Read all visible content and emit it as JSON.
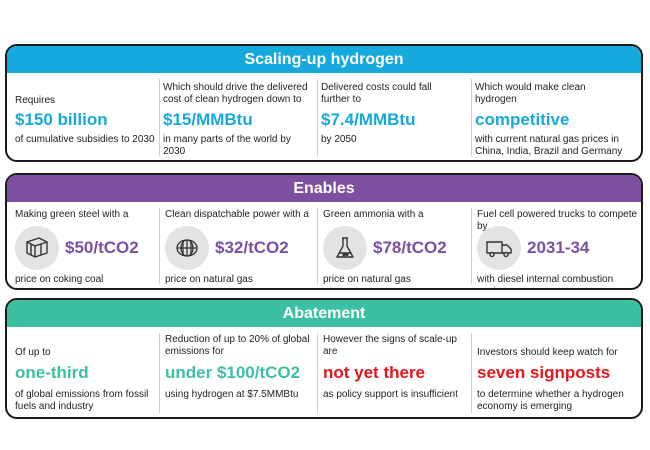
{
  "panel1": {
    "title": "Scaling-up hydrogen",
    "cols": [
      {
        "top": "Requires",
        "big": "$150 billion",
        "bottom": "of cumulative subsidies to 2030"
      },
      {
        "top": "Which should drive the delivered cost of clean hydrogen down to",
        "big": "$15/MMBtu",
        "bottom": "in many parts of the world by 2030"
      },
      {
        "top": "Delivered costs could fall further to",
        "big": "$7.4/MMBtu",
        "bottom": "by 2050"
      },
      {
        "top": "Which would make clean hydrogen",
        "big": "competitive",
        "bottom": "with current natural gas prices in China, India, Brazil and Germany"
      }
    ]
  },
  "panel2": {
    "title": "Enables",
    "cols": [
      {
        "top": "Making green steel with a",
        "big": "$50/tCO2",
        "bottom": "price on coking coal",
        "icon": "steel-beam-icon"
      },
      {
        "top": "Clean dispatchable power with a",
        "big": "$32/tCO2",
        "bottom": "price on natural gas",
        "icon": "turbine-icon"
      },
      {
        "top": "Green ammonia with a",
        "big": "$78/tCO2",
        "bottom": "price on natural gas",
        "icon": "flask-icon"
      },
      {
        "top": "Fuel cell powered trucks to compete by",
        "big": "2031-34",
        "bottom": "with diesel internal combustion engines",
        "icon": "truck-icon"
      }
    ]
  },
  "panel3": {
    "title": "Abatement",
    "cols": [
      {
        "top": "Of up to",
        "big": "one-third",
        "bottom": "of global emissions from fossil fuels and industry"
      },
      {
        "top": "Reduction of up to 20% of global emissions for",
        "big": "under $100/tCO2",
        "bottom": "using hydrogen at $7.5MMBtu"
      },
      {
        "top": "However the signs of scale-up are",
        "big": "not yet there",
        "bottom": "as policy support is insufficient"
      },
      {
        "top": "Investors should keep watch for",
        "big": "seven signposts",
        "bottom": "to determine whether a hydrogen economy is emerging"
      }
    ]
  },
  "colors": {
    "scaling": "#16a9dd",
    "enables": "#7c4fa0",
    "abatement": "#3dbfa3",
    "alert": "#e8141e"
  }
}
